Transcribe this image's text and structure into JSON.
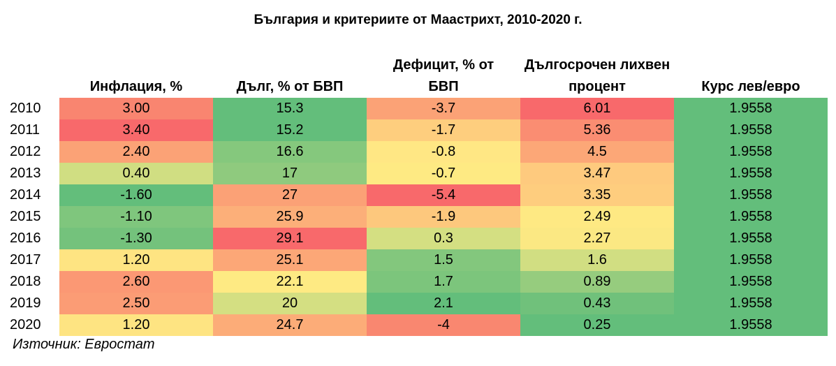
{
  "title": "България и критериите от Маастрихт, 2010-2020 г.",
  "source": "Източник: Евростат",
  "chart_data": {
    "type": "table",
    "title": "България и критериите от Маастрихт, 2010-2020 г.",
    "columns": [
      "Инфлация, %",
      "Дълг, % от БВП",
      "Дефицит, % от БВП",
      "Дългосрочен лихвен процент",
      "Курс лев/евро"
    ],
    "rows": [
      {
        "year": "2010",
        "values": [
          "3.00",
          "15.3",
          "-3.7",
          "6.01",
          "1.9558"
        ]
      },
      {
        "year": "2011",
        "values": [
          "3.40",
          "15.2",
          "-1.7",
          "5.36",
          "1.9558"
        ]
      },
      {
        "year": "2012",
        "values": [
          "2.40",
          "16.6",
          "-0.8",
          "4.5",
          "1.9558"
        ]
      },
      {
        "year": "2013",
        "values": [
          "0.40",
          "17",
          "-0.7",
          "3.47",
          "1.9558"
        ]
      },
      {
        "year": "2014",
        "values": [
          "-1.60",
          "27",
          "-5.4",
          "3.35",
          "1.9558"
        ]
      },
      {
        "year": "2015",
        "values": [
          "-1.10",
          "25.9",
          "-1.9",
          "2.49",
          "1.9558"
        ]
      },
      {
        "year": "2016",
        "values": [
          "-1.30",
          "29.1",
          "0.3",
          "2.27",
          "1.9558"
        ]
      },
      {
        "year": "2017",
        "values": [
          "1.20",
          "25.1",
          "1.5",
          "1.6",
          "1.9558"
        ]
      },
      {
        "year": "2018",
        "values": [
          "2.60",
          "22.1",
          "1.7",
          "0.89",
          "1.9558"
        ]
      },
      {
        "year": "2019",
        "values": [
          "2.50",
          "20",
          "2.1",
          "0.43",
          "1.9558"
        ]
      },
      {
        "year": "2020",
        "values": [
          "1.20",
          "24.7",
          "-4",
          "0.25",
          "1.9558"
        ]
      }
    ],
    "cell_colors": [
      [
        "#F98570",
        "#63BE7B",
        "#FBA276",
        "#F8696B",
        "#63BE7B"
      ],
      [
        "#F8696B",
        "#63BE7B",
        "#FECE7E",
        "#FA8D72",
        "#63BE7B"
      ],
      [
        "#FBA276",
        "#85C87D",
        "#FFE784",
        "#FCA777",
        "#63BE7B"
      ],
      [
        "#D0DE82",
        "#8FCA7E",
        "#FEEA83",
        "#FECA7E",
        "#63BE7B"
      ],
      [
        "#63BE7B",
        "#FBA176",
        "#F8696B",
        "#FECD7E",
        "#63BE7B"
      ],
      [
        "#7FC67D",
        "#FCAF79",
        "#FDC87D",
        "#FEE983",
        "#63BE7B"
      ],
      [
        "#74C27C",
        "#F8696B",
        "#D4DF82",
        "#FBE883",
        "#63BE7B"
      ],
      [
        "#FEE482",
        "#FCA777",
        "#83C77D",
        "#D1DE82",
        "#63BE7B"
      ],
      [
        "#FB9874",
        "#FEEA83",
        "#7CC57C",
        "#96CC7E",
        "#63BE7B"
      ],
      [
        "#FB9C75",
        "#D4DF82",
        "#63BE7B",
        "#70C17B",
        "#63BE7B"
      ],
      [
        "#FEE482",
        "#FCAC78",
        "#F98770",
        "#63BE7B",
        "#63BE7B"
      ]
    ]
  }
}
